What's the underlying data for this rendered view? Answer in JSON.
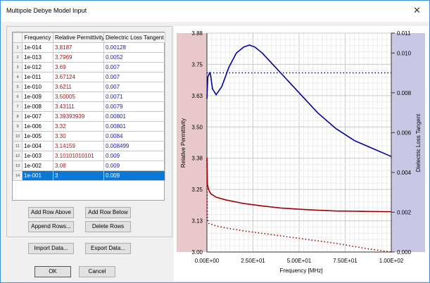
{
  "window": {
    "title": "Multipole Debye Model Input",
    "close_icon": "close-icon"
  },
  "table": {
    "columns": [
      "Frequency",
      "Relative Permittivity",
      "Dielectric Loss Tangent"
    ],
    "rows": [
      [
        "1",
        "1e-014",
        "3.8187",
        "0.00128"
      ],
      [
        "2",
        "1e-013",
        "3.7969",
        "0.0052"
      ],
      [
        "3",
        "1e-012",
        "3.69",
        "0.007"
      ],
      [
        "4",
        "1e-011",
        "3.67124",
        "0.007"
      ],
      [
        "5",
        "1e-010",
        "3.6211",
        "0.007"
      ],
      [
        "6",
        "1e-009",
        "3.50005",
        "0.0071"
      ],
      [
        "7",
        "1e-008",
        "3.43111",
        "0.0079"
      ],
      [
        "8",
        "1e-007",
        "3.39393939",
        "0.00801"
      ],
      [
        "9",
        "1e-006",
        "3.32",
        "0.00801"
      ],
      [
        "10",
        "1e-005",
        "3.30",
        "0.0084"
      ],
      [
        "11",
        "1e-004",
        "3.14159",
        "0.008499"
      ],
      [
        "12",
        "1e-003",
        "3.10101010101",
        "0.009"
      ],
      [
        "13",
        "1e-002",
        "3.08",
        "0.009"
      ],
      [
        "14",
        "1e-001",
        "3",
        "0.009"
      ]
    ],
    "selected_row": 14
  },
  "buttons": {
    "add_above": "Add Row Above",
    "add_below": "Add Row Below",
    "append": "Append Rows...",
    "delete": "Delete Rows",
    "import": "Import Data...",
    "export": "Export Data...",
    "ok": "OK",
    "cancel": "Cancel"
  },
  "chart_data": {
    "type": "line",
    "xlabel": "Frequency [MHz]",
    "ylabel": "Relative Permittivity",
    "y2label": "Dielectric Loss Tangent",
    "xlim": [
      0,
      100
    ],
    "ylim": [
      3.0,
      3.88
    ],
    "y2lim": [
      0,
      0.011
    ],
    "xticks": [
      "0.00E+00",
      "2.50E+01",
      "5.00E+01",
      "7.50E+01",
      "1.00E+02"
    ],
    "yticks": [
      "3.00",
      "3.13",
      "3.25",
      "3.38",
      "3.50",
      "3.63",
      "3.75",
      "3.88"
    ],
    "y2ticks": [
      "0.000",
      "0.002",
      "0.004",
      "0.006",
      "0.008",
      "0.010",
      "0.011"
    ],
    "grid": true,
    "colors": {
      "permittivity": "#a00000",
      "loss": "#0000a0",
      "left_band": "#e8c8ca",
      "right_band": "#c8c8e6"
    },
    "series": [
      {
        "axis": "y2",
        "style": "solid",
        "color": "#0000a0",
        "x": [
          0,
          0.5,
          1,
          1.5,
          2,
          3,
          5,
          8,
          12,
          16,
          20,
          23,
          26,
          30,
          35,
          40,
          45,
          50,
          60,
          70,
          80,
          90,
          100
        ],
        "y": [
          0.0077,
          0.0088,
          0.0089,
          0.009,
          0.0089,
          0.0082,
          0.0079,
          0.0083,
          0.0093,
          0.01,
          0.0103,
          0.0104,
          0.0103,
          0.01,
          0.0095,
          0.009,
          0.0085,
          0.008,
          0.007,
          0.0062,
          0.0056,
          0.0052,
          0.0048
        ]
      },
      {
        "axis": "y2",
        "style": "dotted",
        "color": "#0000a0",
        "x": [
          0,
          2,
          100
        ],
        "y": [
          0.009,
          0.009,
          0.009
        ]
      },
      {
        "axis": "y",
        "style": "solid",
        "color": "#a00000",
        "x": [
          0,
          0.3,
          1,
          2,
          5,
          10,
          20,
          30,
          40,
          50,
          60,
          70,
          80,
          90,
          100
        ],
        "y": [
          3.38,
          3.27,
          3.25,
          3.235,
          3.22,
          3.21,
          3.195,
          3.185,
          3.177,
          3.172,
          3.168,
          3.165,
          3.164,
          3.163,
          3.162
        ]
      },
      {
        "axis": "y",
        "style": "dotted",
        "color": "#a00000",
        "x": [
          0,
          0.3,
          1,
          3,
          5,
          10,
          20,
          30,
          40,
          50,
          60,
          70,
          80,
          90,
          100
        ],
        "y": [
          3.37,
          3.13,
          3.115,
          3.11,
          3.105,
          3.097,
          3.085,
          3.075,
          3.065,
          3.055,
          3.045,
          3.035,
          3.022,
          3.01,
          3.0
        ]
      }
    ]
  }
}
